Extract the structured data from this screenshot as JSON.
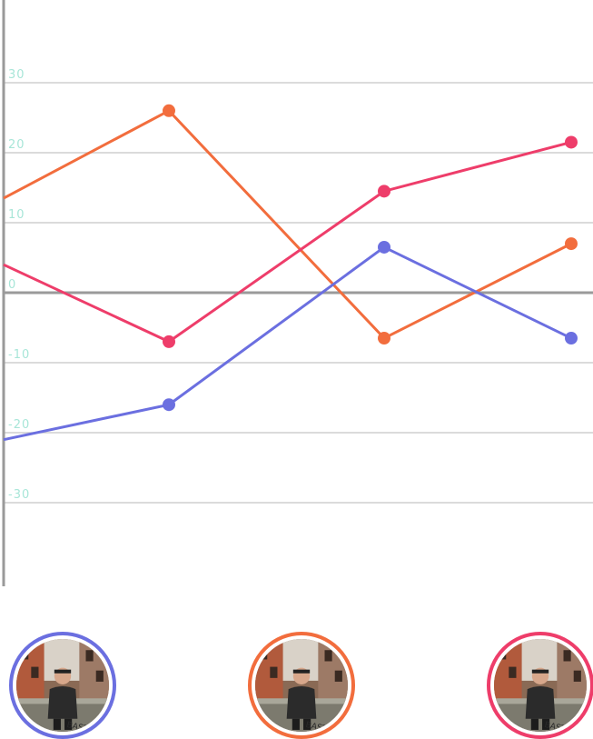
{
  "chart_data": {
    "type": "line",
    "title": "",
    "xlabel": "",
    "ylabel": "",
    "ylim": [
      -40,
      40
    ],
    "grid": true,
    "y_ticks": [
      30,
      20,
      10,
      0,
      -10,
      -20,
      -30
    ],
    "x": [
      0,
      1,
      2,
      3,
      4
    ],
    "series": [
      {
        "color": "#f26d3d",
        "values": [
          13.5,
          26,
          null,
          -6.5,
          7
        ]
      },
      {
        "color": "#ee3d6a",
        "values": [
          4,
          -7,
          null,
          14.5,
          21.5
        ]
      },
      {
        "color": "#6b6fe0",
        "values": [
          -21,
          -16,
          null,
          6.5,
          -6.5
        ]
      }
    ]
  },
  "avatars": [
    {
      "icon": "user-photo",
      "ring_color": "#6b6fe0"
    },
    {
      "icon": "user-photo",
      "ring_color": "#f26d3d"
    },
    {
      "icon": "user-photo",
      "ring_color": "#ee3d6a"
    }
  ]
}
